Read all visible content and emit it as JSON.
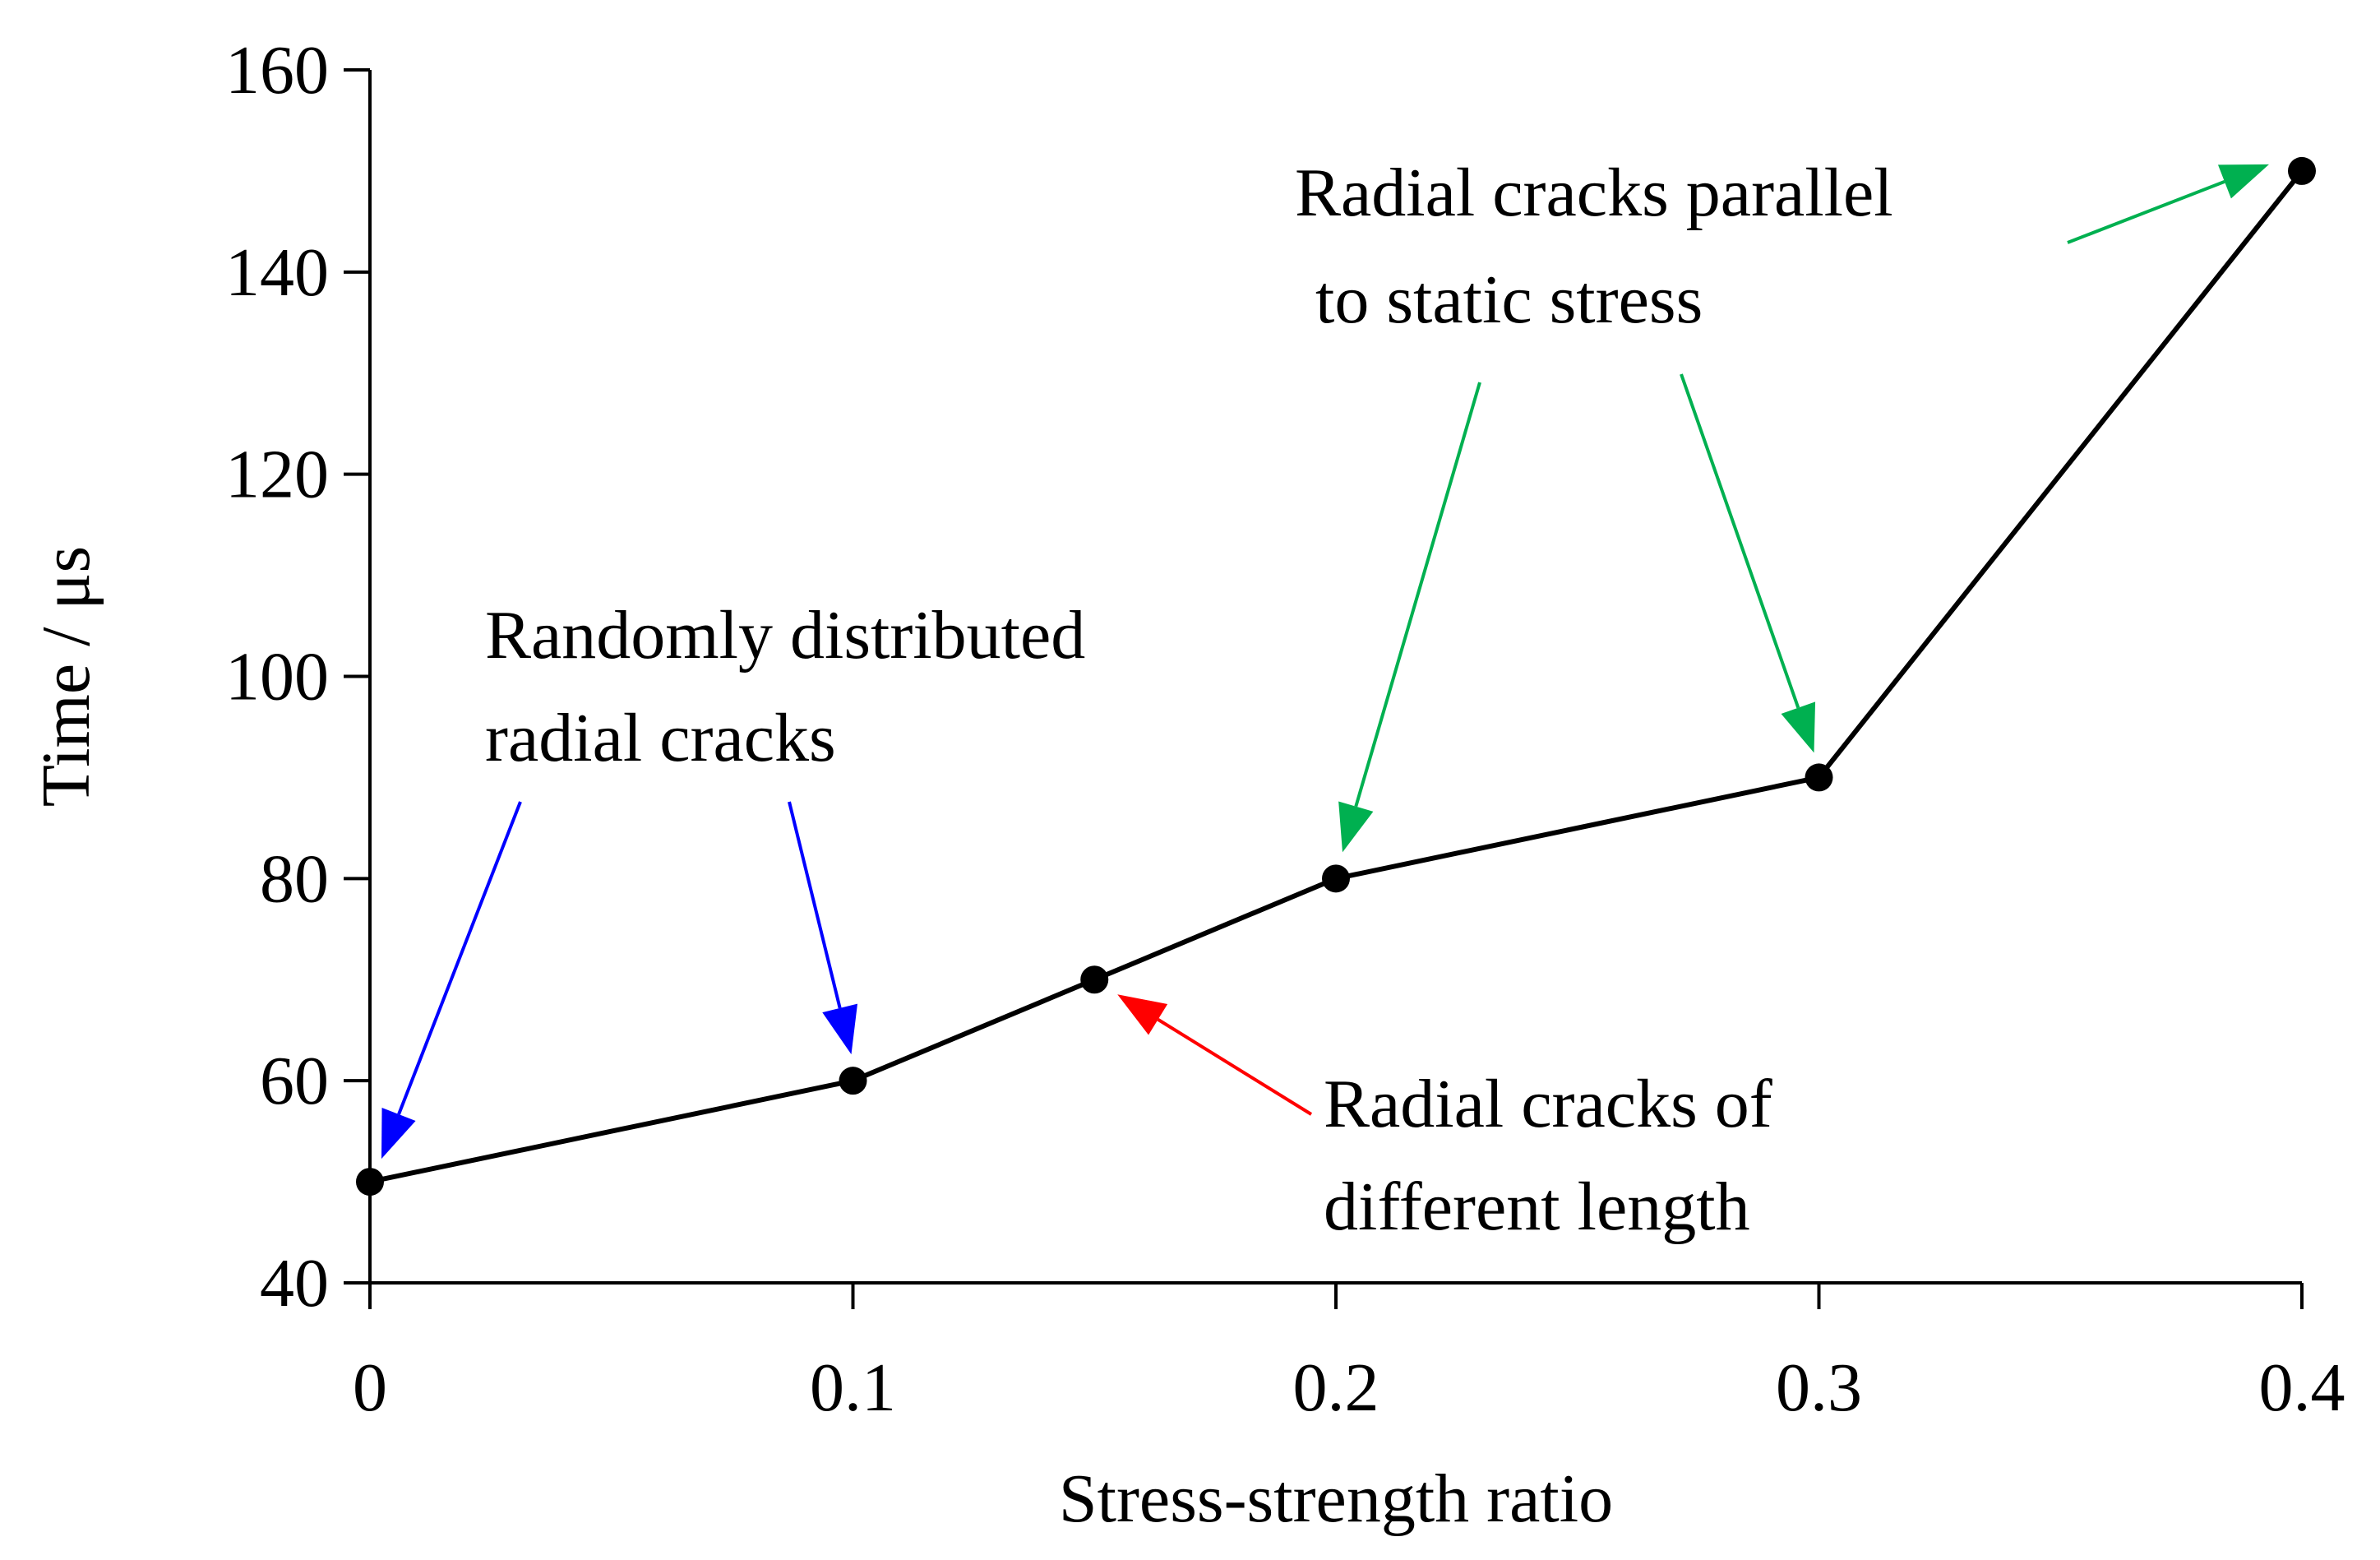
{
  "chart_data": {
    "type": "line",
    "title": "",
    "xlabel": "Stress-strength ratio",
    "ylabel": "Time / μs",
    "xlim": [
      0,
      0.4
    ],
    "ylim": [
      40,
      160
    ],
    "grid": false,
    "legend": "none",
    "x_ticks": [
      0,
      0.1,
      0.2,
      0.3,
      0.4
    ],
    "x_tick_labels": [
      "0",
      "0.1",
      "0.2",
      "0.3",
      "0.4"
    ],
    "y_ticks": [
      40,
      60,
      80,
      100,
      120,
      140,
      160
    ],
    "y_tick_labels": [
      "40",
      "60",
      "80",
      "100",
      "120",
      "140",
      "160"
    ],
    "series": [
      {
        "name": "Time",
        "color": "#000000",
        "x": [
          0,
          0.1,
          0.15,
          0.2,
          0.3,
          0.4
        ],
        "y": [
          50,
          60,
          70,
          80,
          90,
          150
        ]
      }
    ],
    "annotations": [
      {
        "id": "random",
        "lines": [
          "Randomly distributed",
          "radial cracks"
        ],
        "color": "#0000FF",
        "targets": [
          [
            0,
            50
          ],
          [
            0.1,
            60
          ]
        ]
      },
      {
        "id": "different-length",
        "lines": [
          "Radial cracks of",
          "different length"
        ],
        "color": "#FF0000",
        "targets": [
          [
            0.15,
            70
          ]
        ]
      },
      {
        "id": "parallel",
        "lines": [
          "Radial cracks parallel",
          "to static stress"
        ],
        "color": "#00B050",
        "targets": [
          [
            0.2,
            80
          ],
          [
            0.3,
            90
          ],
          [
            0.4,
            150
          ]
        ]
      }
    ]
  }
}
